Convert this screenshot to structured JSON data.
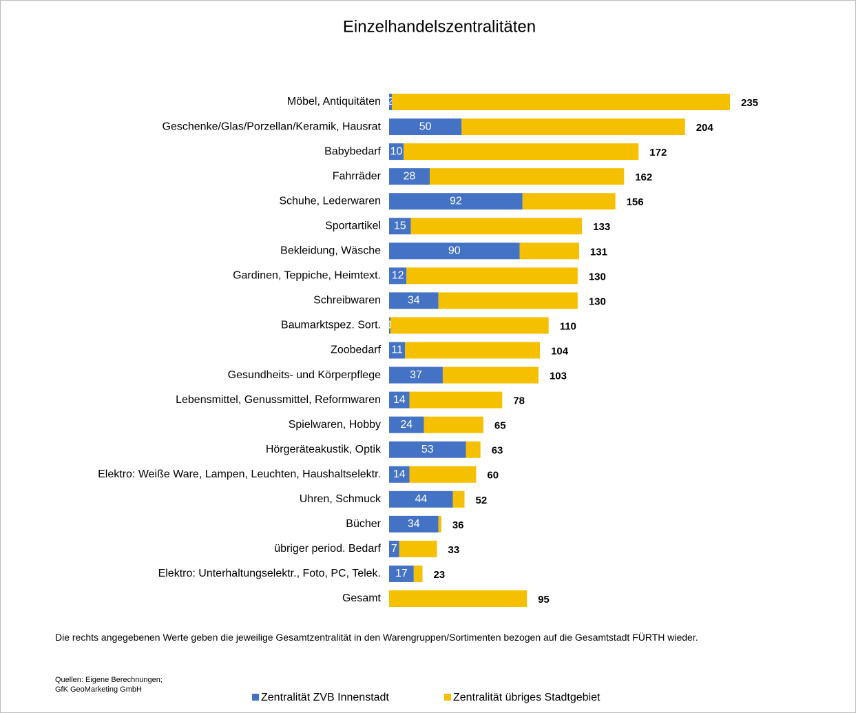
{
  "chart_data": {
    "type": "stacked-barh",
    "title": "Einzelhandelszentralitäten",
    "categories": [
      "Möbel, Antiquitäten",
      "Geschenke/Glas/Porzellan/Keramik, Hausrat",
      "Babybedarf",
      "Fahrräder",
      "Schuhe, Lederwaren",
      "Sportartikel",
      "Bekleidung, Wäsche",
      "Gardinen, Teppiche, Heimtext.",
      "Schreibwaren",
      "Baumarktspez. Sort.",
      "Zoobedarf",
      "Gesundheits- und Körperpflege",
      "Lebensmittel, Genussmittel, Reformwaren",
      "Spielwaren, Hobby",
      "Hörgeräteakustik, Optik",
      "Elektro: Weiße Ware, Lampen, Leuchten, Haushaltselektr.",
      "Uhren, Schmuck",
      "Bücher",
      "übriger period. Bedarf",
      "Elektro: Unterhaltungselektr., Foto, PC, Telek.",
      "Gesamt"
    ],
    "series": [
      {
        "name": "Zentralität ZVB Innenstadt",
        "color": "#4472c4",
        "values": [
          2,
          50,
          10,
          28,
          92,
          15,
          90,
          12,
          34,
          1,
          11,
          37,
          14,
          24,
          53,
          14,
          44,
          34,
          7,
          17,
          null
        ]
      },
      {
        "name": "Zentralität übriges Stadtgebiet",
        "color": "#f5c000",
        "values": [
          233,
          154,
          162,
          134,
          64,
          118,
          41,
          118,
          96,
          109,
          93,
          66,
          64,
          41,
          10,
          46,
          8,
          2,
          26,
          6,
          95
        ]
      }
    ],
    "totals": [
      235,
      204,
      172,
      162,
      156,
      133,
      131,
      130,
      130,
      110,
      104,
      103,
      78,
      65,
      63,
      60,
      52,
      36,
      33,
      23,
      95
    ],
    "note": "Die rechts angegebenen Werte geben die jeweilige Gesamtzentralität in den Warengruppen/Sortimenten bezogen auf die Gesamtstadt FÜRTH wieder.",
    "source": [
      "Quellen: Eigene Berechnungen;",
      "GfK GeoMarketing GmbH"
    ]
  }
}
